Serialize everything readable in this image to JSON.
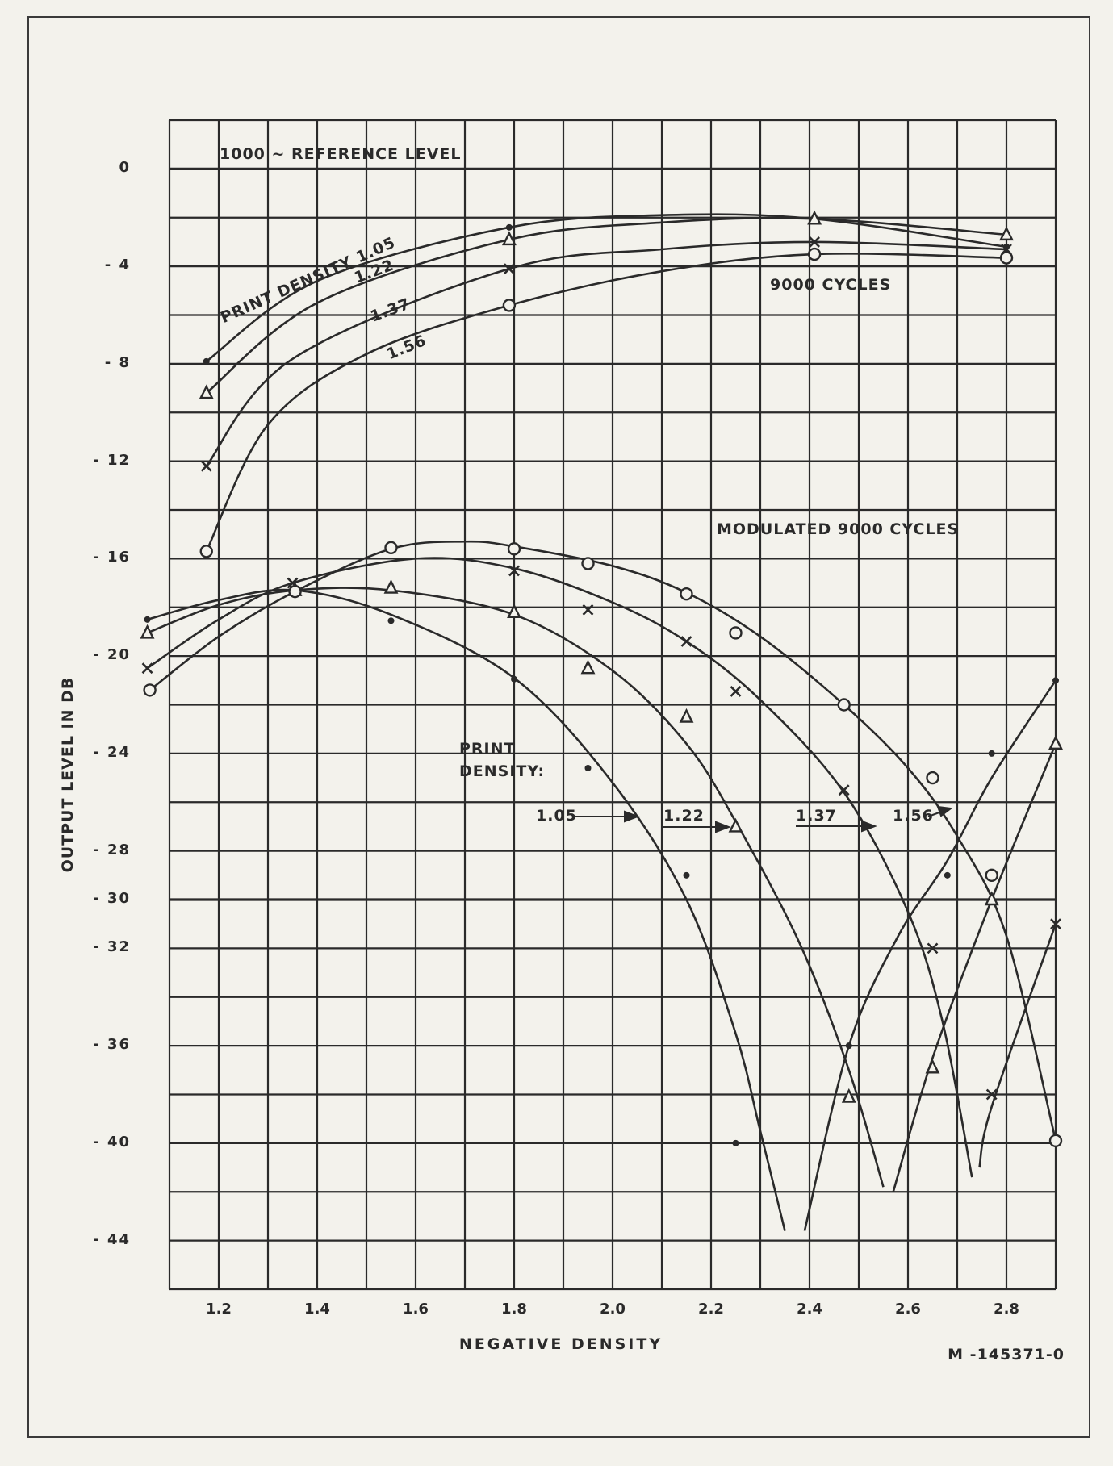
{
  "chart_data": {
    "type": "line",
    "title": "",
    "xlabel": "NEGATIVE DENSITY",
    "ylabel": "OUTPUT LEVEL IN DB",
    "xlim": [
      1.1,
      2.9
    ],
    "ylim": [
      -46,
      2
    ],
    "grid": true,
    "x_ticks": [
      {
        "v": 1.2,
        "t": "1.2"
      },
      {
        "v": 1.4,
        "t": "1.4"
      },
      {
        "v": 1.6,
        "t": "1.6"
      },
      {
        "v": 1.8,
        "t": "1.8"
      },
      {
        "v": 2.0,
        "t": "2.0"
      },
      {
        "v": 2.2,
        "t": "2.2"
      },
      {
        "v": 2.4,
        "t": "2.4"
      },
      {
        "v": 2.6,
        "t": "2.6"
      },
      {
        "v": 2.8,
        "t": "2.8"
      }
    ],
    "y_ticks": [
      {
        "v": 0,
        "t": "0"
      },
      {
        "v": -4,
        "t": "- 4"
      },
      {
        "v": -8,
        "t": "- 8"
      },
      {
        "v": -12,
        "t": "- 12"
      },
      {
        "v": -16,
        "t": "- 16"
      },
      {
        "v": -20,
        "t": "- 20"
      },
      {
        "v": -24,
        "t": "- 24"
      },
      {
        "v": -28,
        "t": "- 28"
      },
      {
        "v": -30,
        "t": "- 30"
      },
      {
        "v": -32,
        "t": "- 32"
      },
      {
        "v": -36,
        "t": "- 36"
      },
      {
        "v": -40,
        "t": "- 40"
      },
      {
        "v": -44,
        "t": "- 44"
      }
    ],
    "annotations": {
      "reference": "1000 ~ REFERENCE LEVEL",
      "upper_group": "9000 CYCLES",
      "lower_group": "MODULATED 9000 CYCLES",
      "upper_print_density": "PRINT DENSITY 1.05",
      "upper_122": "1.22",
      "upper_137": "1.37",
      "upper_156": "1.56",
      "lower_print_density_1": "PRINT",
      "lower_print_density_2": "DENSITY:",
      "lower_105": "1.05",
      "lower_122": "1.22",
      "lower_137": "1.37",
      "lower_156": "1.56",
      "drawing_number": "M -145371-0"
    },
    "series": [
      {
        "name": "9000 cycles, print density 1.05",
        "marker": "dot",
        "points": [
          [
            1.175,
            -7.9
          ],
          [
            1.79,
            -2.4
          ],
          [
            2.41,
            -2.05
          ],
          [
            2.8,
            -3.2
          ]
        ],
        "curves": [
          [
            [
              1.175,
              -7.9
            ],
            [
              1.4,
              -4.6
            ],
            [
              1.79,
              -2.4
            ],
            [
              2.1,
              -1.9
            ],
            [
              2.41,
              -2.05
            ],
            [
              2.8,
              -3.2
            ]
          ]
        ]
      },
      {
        "name": "9000 cycles, print density 1.22",
        "marker": "triangle",
        "points": [
          [
            1.175,
            -9.2
          ],
          [
            1.79,
            -2.9
          ],
          [
            2.41,
            -2.05
          ],
          [
            2.8,
            -2.7
          ]
        ],
        "curves": [
          [
            [
              1.175,
              -9.2
            ],
            [
              1.4,
              -5.5
            ],
            [
              1.79,
              -2.9
            ],
            [
              2.1,
              -2.2
            ],
            [
              2.41,
              -2.05
            ],
            [
              2.8,
              -2.7
            ]
          ]
        ]
      },
      {
        "name": "9000 cycles, print density 1.37",
        "marker": "x",
        "points": [
          [
            1.175,
            -12.2
          ],
          [
            1.79,
            -4.1
          ],
          [
            2.41,
            -3.0
          ],
          [
            2.8,
            -3.3
          ]
        ],
        "curves": [
          [
            [
              1.175,
              -12.2
            ],
            [
              1.35,
              -7.8
            ],
            [
              1.79,
              -4.1
            ],
            [
              2.1,
              -3.3
            ],
            [
              2.41,
              -3.0
            ],
            [
              2.8,
              -3.3
            ]
          ]
        ]
      },
      {
        "name": "9000 cycles, print density 1.56",
        "marker": "circle",
        "points": [
          [
            1.175,
            -15.7
          ],
          [
            1.79,
            -5.6
          ],
          [
            2.41,
            -3.5
          ],
          [
            2.8,
            -3.65
          ]
        ],
        "curves": [
          [
            [
              1.175,
              -15.7
            ],
            [
              1.3,
              -10.5
            ],
            [
              1.5,
              -7.6
            ],
            [
              1.79,
              -5.6
            ],
            [
              2.1,
              -4.2
            ],
            [
              2.41,
              -3.5
            ],
            [
              2.8,
              -3.65
            ]
          ]
        ]
      },
      {
        "name": "Modulated 9000 cycles, print density 1.05",
        "marker": "dot",
        "points": [
          [
            1.055,
            -18.5
          ],
          [
            1.355,
            -17.3
          ],
          [
            1.55,
            -18.55
          ],
          [
            1.8,
            -20.95
          ],
          [
            1.95,
            -24.6
          ],
          [
            2.15,
            -29.0
          ],
          [
            2.25,
            -40.0
          ],
          [
            2.48,
            -36.0
          ],
          [
            2.68,
            -29.0
          ],
          [
            2.77,
            -24.0
          ],
          [
            2.9,
            -21.0
          ]
        ],
        "curves": [
          [
            [
              1.055,
              -18.5
            ],
            [
              1.2,
              -17.7
            ],
            [
              1.355,
              -17.3
            ],
            [
              1.55,
              -18.3
            ],
            [
              1.8,
              -20.9
            ],
            [
              2.0,
              -25.2
            ],
            [
              2.15,
              -30.0
            ],
            [
              2.25,
              -35.5
            ],
            [
              2.3,
              -39.5
            ],
            [
              2.35,
              -43.6
            ]
          ],
          [
            [
              2.39,
              -43.6
            ],
            [
              2.48,
              -36.0
            ],
            [
              2.58,
              -31.5
            ],
            [
              2.68,
              -28.4
            ],
            [
              2.77,
              -25.0
            ],
            [
              2.9,
              -21.0
            ]
          ]
        ]
      },
      {
        "name": "Modulated 9000 cycles, print density 1.22",
        "marker": "triangle",
        "points": [
          [
            1.055,
            -19.05
          ],
          [
            1.355,
            -17.3
          ],
          [
            1.55,
            -17.2
          ],
          [
            1.8,
            -18.2
          ],
          [
            1.95,
            -20.5
          ],
          [
            2.15,
            -22.5
          ],
          [
            2.25,
            -27.0
          ],
          [
            2.48,
            -38.1
          ],
          [
            2.65,
            -36.9
          ],
          [
            2.77,
            -30.0
          ],
          [
            2.9,
            -23.6
          ]
        ],
        "curves": [
          [
            [
              1.055,
              -19.05
            ],
            [
              1.2,
              -17.9
            ],
            [
              1.355,
              -17.3
            ],
            [
              1.55,
              -17.3
            ],
            [
              1.8,
              -18.3
            ],
            [
              2.0,
              -20.6
            ],
            [
              2.15,
              -23.6
            ],
            [
              2.25,
              -26.8
            ],
            [
              2.38,
              -31.8
            ],
            [
              2.48,
              -37.0
            ],
            [
              2.55,
              -41.8
            ]
          ],
          [
            [
              2.57,
              -42.0
            ],
            [
              2.65,
              -36.5
            ],
            [
              2.77,
              -30.0
            ],
            [
              2.9,
              -23.6
            ]
          ]
        ]
      },
      {
        "name": "Modulated 9000 cycles, print density 1.37",
        "marker": "x",
        "points": [
          [
            1.055,
            -20.5
          ],
          [
            1.35,
            -17.0
          ],
          [
            1.8,
            -16.5
          ],
          [
            1.95,
            -18.1
          ],
          [
            2.15,
            -19.4
          ],
          [
            2.25,
            -21.45
          ],
          [
            2.47,
            -25.5
          ],
          [
            2.65,
            -32.0
          ],
          [
            2.77,
            -38.0
          ],
          [
            2.9,
            -31.0
          ]
        ],
        "curves": [
          [
            [
              1.055,
              -20.5
            ],
            [
              1.2,
              -18.5
            ],
            [
              1.35,
              -17.0
            ],
            [
              1.6,
              -16.0
            ],
            [
              1.8,
              -16.4
            ],
            [
              2.0,
              -17.8
            ],
            [
              2.15,
              -19.4
            ],
            [
              2.3,
              -21.8
            ],
            [
              2.47,
              -25.6
            ],
            [
              2.6,
              -30.5
            ],
            [
              2.67,
              -35.0
            ],
            [
              2.73,
              -41.4
            ]
          ],
          [
            [
              2.745,
              -41.0
            ],
            [
              2.77,
              -38.5
            ],
            [
              2.9,
              -31.0
            ]
          ]
        ]
      },
      {
        "name": "Modulated 9000 cycles, print density 1.56",
        "marker": "circle",
        "points": [
          [
            1.06,
            -21.4
          ],
          [
            1.355,
            -17.35
          ],
          [
            1.55,
            -15.55
          ],
          [
            1.8,
            -15.6
          ],
          [
            1.95,
            -16.2
          ],
          [
            2.15,
            -17.45
          ],
          [
            2.25,
            -19.05
          ],
          [
            2.47,
            -22.0
          ],
          [
            2.65,
            -25.0
          ],
          [
            2.77,
            -29.0
          ],
          [
            2.9,
            -39.9
          ]
        ],
        "curves": [
          [
            [
              1.06,
              -21.4
            ],
            [
              1.2,
              -19.2
            ],
            [
              1.355,
              -17.35
            ],
            [
              1.55,
              -15.6
            ],
            [
              1.7,
              -15.3
            ],
            [
              1.8,
              -15.5
            ],
            [
              2.0,
              -16.3
            ],
            [
              2.15,
              -17.4
            ],
            [
              2.3,
              -19.2
            ],
            [
              2.47,
              -22.0
            ],
            [
              2.6,
              -24.6
            ],
            [
              2.7,
              -27.4
            ],
            [
              2.8,
              -31.5
            ],
            [
              2.9,
              -39.9
            ]
          ]
        ]
      }
    ]
  }
}
